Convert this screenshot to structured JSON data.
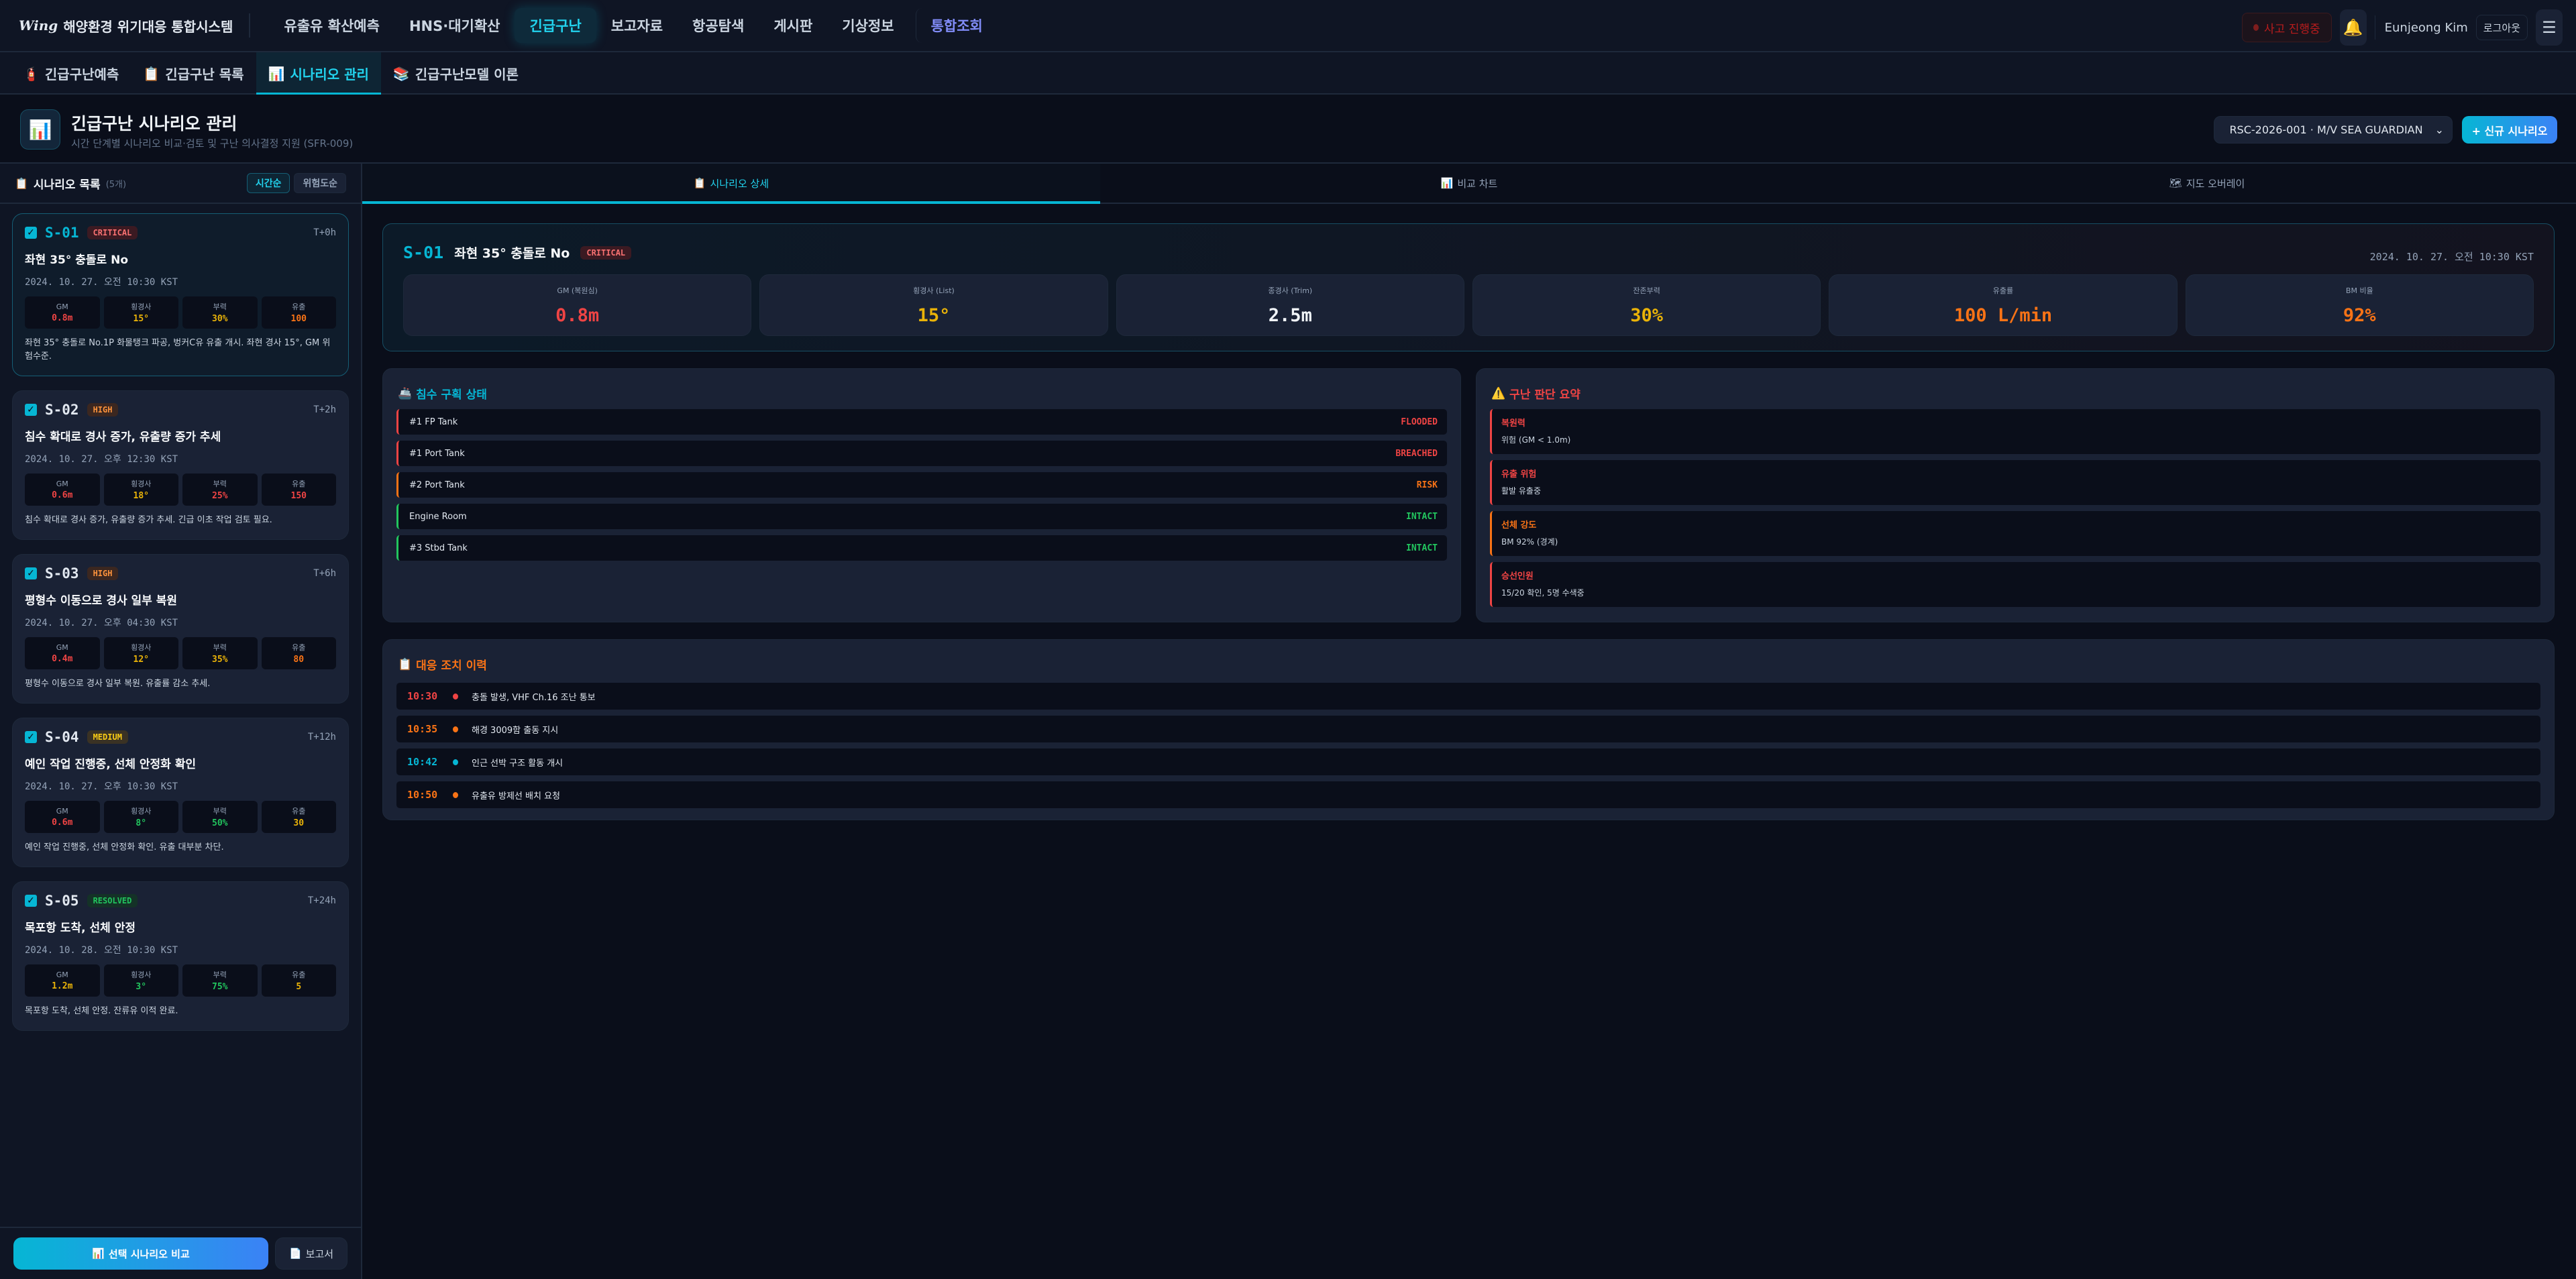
{
  "nav": {
    "logo_mark": "Wing",
    "app_title": "해양환경 위기대응 통합시스템",
    "items": [
      "유출유 확산예측",
      "HNS·대기확산",
      "긴급구난",
      "보고자료",
      "항공탐색",
      "게시판",
      "기상정보"
    ],
    "active_index": 2,
    "integrated": "통합조회",
    "incident_status": "사고 진행중",
    "user_name": "Eunjeong Kim",
    "logout": "로그아웃",
    "bell_icon": "🔔",
    "menu_icon": "☰"
  },
  "subtabs": [
    {
      "icon": "🧯",
      "label": "긴급구난예측"
    },
    {
      "icon": "📋",
      "label": "긴급구난 목록"
    },
    {
      "icon": "📊",
      "label": "시나리오 관리",
      "active": true
    },
    {
      "icon": "📚",
      "label": "긴급구난모델 이론"
    }
  ],
  "page": {
    "icon": "📊",
    "title": "긴급구난 시나리오 관리",
    "subtitle": "시간 단계별 시나리오 비교·검토 및 구난 의사결정 지원 (SFR-009)",
    "case_select": "RSC-2026-001 · M/V SEA GUARDIAN",
    "new_button": "+ 신규 시나리오"
  },
  "sidebar": {
    "icon": "📋",
    "title": "시나리오 목록",
    "count": "(5개)",
    "sort_time": "시간순",
    "sort_risk": "위험도순",
    "metric_labels": [
      "GM",
      "횡경사",
      "부력",
      "유출"
    ],
    "compare_button": "선택 시나리오 비교",
    "compare_icon": "📊",
    "report_button": "보고서",
    "report_icon": "📄",
    "scenarios": [
      {
        "id": "S-01",
        "severity": "CRITICAL",
        "offset": "T+0h",
        "title": "좌현 35° 충돌로 No",
        "date": "2024. 10. 27. 오전 10:30 KST",
        "checked": true,
        "selected": true,
        "metrics": [
          "0.8m",
          "15°",
          "30%",
          "100"
        ],
        "metric_colors": [
          "#ef4444",
          "#eab308",
          "#eab308",
          "#f97316"
        ],
        "desc": "좌현 35° 충돌로 No.1P 화물탱크 파공, 벙커C유 유출 개시. 좌현 경사 15°, GM 위험수준."
      },
      {
        "id": "S-02",
        "severity": "HIGH",
        "offset": "T+2h",
        "title": "침수 확대로 경사 증가, 유출량 증가 추세",
        "date": "2024. 10. 27. 오후 12:30 KST",
        "checked": true,
        "metrics": [
          "0.6m",
          "18°",
          "25%",
          "150"
        ],
        "metric_colors": [
          "#ef4444",
          "#eab308",
          "#ef4444",
          "#ef4444"
        ],
        "desc": "침수 확대로 경사 증가, 유출량 증가 추세. 긴급 이초 작업 검토 필요."
      },
      {
        "id": "S-03",
        "severity": "HIGH",
        "offset": "T+6h",
        "title": "평형수 이동으로 경사 일부 복원",
        "date": "2024. 10. 27. 오후 04:30 KST",
        "checked": true,
        "metrics": [
          "0.4m",
          "12°",
          "35%",
          "80"
        ],
        "metric_colors": [
          "#ef4444",
          "#eab308",
          "#eab308",
          "#f97316"
        ],
        "desc": "평형수 이동으로 경사 일부 복원. 유출률 감소 추세."
      },
      {
        "id": "S-04",
        "severity": "MEDIUM",
        "offset": "T+12h",
        "title": "예인 작업 진행중, 선체 안정화 확인",
        "date": "2024. 10. 27. 오후 10:30 KST",
        "checked": true,
        "metrics": [
          "0.6m",
          "8°",
          "50%",
          "30"
        ],
        "metric_colors": [
          "#ef4444",
          "#22c55e",
          "#22c55e",
          "#eab308"
        ],
        "desc": "예인 작업 진행중, 선체 안정화 확인. 유출 대부분 차단."
      },
      {
        "id": "S-05",
        "severity": "RESOLVED",
        "offset": "T+24h",
        "title": "목포항 도착, 선체 안정",
        "date": "2024. 10. 28. 오전 10:30 KST",
        "checked": true,
        "metrics": [
          "1.2m",
          "3°",
          "75%",
          "5"
        ],
        "metric_colors": [
          "#eab308",
          "#22c55e",
          "#22c55e",
          "#eab308"
        ],
        "desc": "목포항 도착, 선체 안정. 잔류유 이적 완료."
      }
    ]
  },
  "main": {
    "tabs": [
      {
        "icon": "📋",
        "label": "시나리오 상세",
        "active": true
      },
      {
        "icon": "📊",
        "label": "비교 차트"
      },
      {
        "icon": "🗺",
        "label": "지도 오버레이"
      }
    ],
    "header": {
      "id": "S-01",
      "title": "좌현 35° 충돌로 No",
      "severity": "CRITICAL",
      "date": "2024. 10. 27. 오전 10:30 KST",
      "metrics": [
        {
          "label": "GM (복원심)",
          "value": "0.8m",
          "color": "#ef4444"
        },
        {
          "label": "횡경사 (List)",
          "value": "15°",
          "color": "#eab308"
        },
        {
          "label": "종경사 (Trim)",
          "value": "2.5m",
          "color": "#f1f5f9"
        },
        {
          "label": "잔존부력",
          "value": "30%",
          "color": "#eab308"
        },
        {
          "label": "유출률",
          "value": "100 L/min",
          "color": "#f97316"
        },
        {
          "label": "BM 비율",
          "value": "92%",
          "color": "#f97316"
        }
      ]
    },
    "compartments": {
      "icon": "🚢",
      "title": "침수 구획 상태",
      "items": [
        {
          "name": "#1 FP Tank",
          "status": "FLOODED",
          "color": "#ef4444"
        },
        {
          "name": "#1 Port Tank",
          "status": "BREACHED",
          "color": "#ef4444"
        },
        {
          "name": "#2 Port Tank",
          "status": "RISK",
          "color": "#f97316"
        },
        {
          "name": "Engine Room",
          "status": "INTACT",
          "color": "#22c55e"
        },
        {
          "name": "#3 Stbd Tank",
          "status": "INTACT",
          "color": "#22c55e"
        }
      ]
    },
    "summary": {
      "icon": "⚠️",
      "title": "구난 판단 요약",
      "items": [
        {
          "key": "복원력",
          "value": "위험 (GM < 1.0m)",
          "color": "#ef4444"
        },
        {
          "key": "유출 위험",
          "value": "활발 유출중",
          "color": "#ef4444"
        },
        {
          "key": "선체 강도",
          "value": "BM 92% (경계)",
          "color": "#f97316"
        },
        {
          "key": "승선인원",
          "value": "15/20 확인, 5명 수색중",
          "color": "#ef4444"
        }
      ]
    },
    "history": {
      "icon": "📋",
      "title": "대응 조치 이력",
      "items": [
        {
          "time": "10:30",
          "text": "충돌 발생, VHF Ch.16 조난 통보",
          "color": "#ef4444"
        },
        {
          "time": "10:35",
          "text": "해경 3009함 출동 지시",
          "color": "#f97316"
        },
        {
          "time": "10:42",
          "text": "인근 선박 구조 활동 개시",
          "color": "#06b6d4"
        },
        {
          "time": "10:50",
          "text": "유출유 방제선 배치 요청",
          "color": "#f97316"
        }
      ]
    }
  }
}
